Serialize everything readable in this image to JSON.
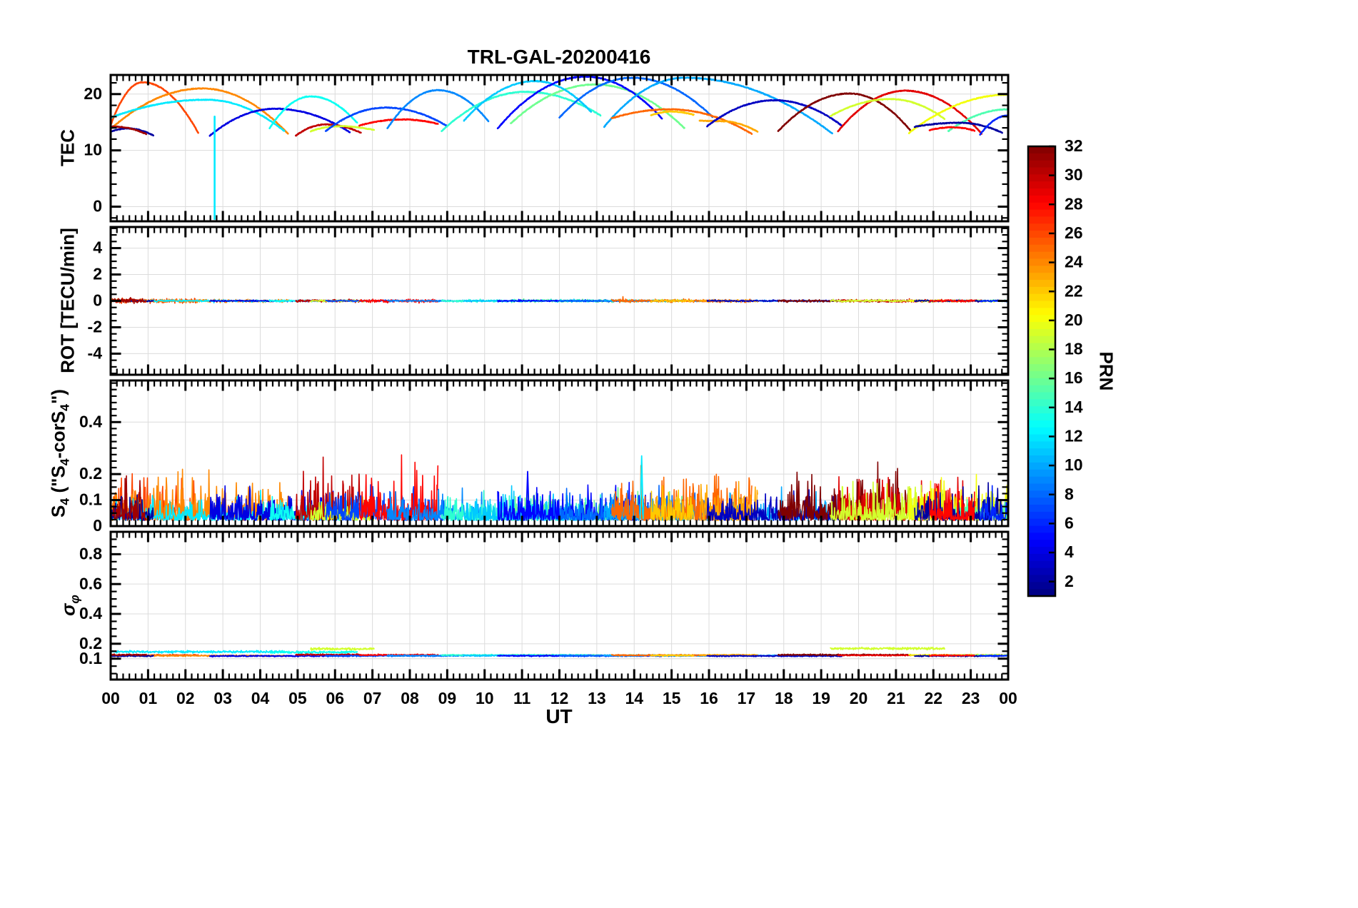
{
  "title": "TRL-GAL-20200416",
  "xlabel": "UT",
  "colorbar": {
    "label": "PRN",
    "range": [
      1,
      32
    ],
    "tick_values": [
      2,
      4,
      6,
      8,
      10,
      12,
      14,
      16,
      18,
      20,
      22,
      24,
      26,
      28,
      30,
      32
    ],
    "colormap": "jet"
  },
  "chart_data": {
    "type": "line",
    "x_unit": "hours UT",
    "x_range": [
      0,
      24
    ],
    "x_tick_labels": [
      "00",
      "01",
      "02",
      "03",
      "04",
      "05",
      "06",
      "07",
      "08",
      "09",
      "10",
      "11",
      "12",
      "13",
      "14",
      "15",
      "16",
      "17",
      "18",
      "19",
      "20",
      "21",
      "22",
      "23",
      "00"
    ],
    "panels": [
      {
        "id": "tec",
        "ylabel_html": "TEC",
        "ylim": [
          -2.6,
          23.4
        ],
        "yticks": [
          0,
          10,
          20
        ],
        "minor_step": 2,
        "grid": true
      },
      {
        "id": "rot",
        "ylabel_html": "ROT [TECU/min]",
        "ylim": [
          -5.6,
          5.6
        ],
        "yticks": [
          -4,
          -2,
          0,
          2,
          4
        ],
        "minor_step": 0.5,
        "grid": true
      },
      {
        "id": "s4",
        "ylabel_html": "S<sub>4</sub> (\"S<sub>4</sub>-corS<sub>4</sub>\")",
        "ylim": [
          0,
          0.56
        ],
        "yticks": [
          0,
          0.1,
          0.2,
          0.4
        ],
        "minor_step": 0.025,
        "grid": true
      },
      {
        "id": "sigma_phi",
        "ylabel_html": "&sigma;<sub>&phi;</sub>",
        "ylim": [
          -0.04,
          0.95
        ],
        "yticks": [
          0.1,
          0.2,
          0.4,
          0.6,
          0.8
        ],
        "minor_step": 0.05,
        "grid": true
      }
    ],
    "satellite_arcs": [
      {
        "prn": 26,
        "t": [
          0,
          0.85,
          2.35
        ],
        "tec": [
          14.5,
          22.1,
          13.0
        ],
        "rot_amp": 0.14,
        "s4_amp": 0.1,
        "sigma": 0.124
      },
      {
        "prn": 24,
        "t": [
          0,
          2.45,
          4.75
        ],
        "tec": [
          13.8,
          21.0,
          12.9
        ],
        "rot_amp": 0.1,
        "s4_amp": 0.09,
        "sigma": 0.12
      },
      {
        "prn": 12,
        "t": [
          0,
          2.55,
          4.65
        ],
        "tec": [
          15.8,
          19.0,
          13.4
        ],
        "rot_amp": 0.06,
        "s4_amp": 0.05,
        "sigma": 0.146
      },
      {
        "prn": 2,
        "t": [
          0,
          0.45,
          1.15
        ],
        "tec": [
          13.3,
          13.9,
          12.6
        ],
        "rot_amp": 0.05,
        "s4_amp": 0.06,
        "sigma": 0.118
      },
      {
        "prn": 31,
        "t": [
          0.05,
          0.1,
          0.95
        ],
        "tec": [
          14.3,
          14.2,
          12.9
        ],
        "rot_amp": 0.16,
        "s4_amp": 0.1,
        "sigma": 0.126
      },
      {
        "prn": 4,
        "t": [
          2.65,
          4.4,
          6.4
        ],
        "tec": [
          12.6,
          17.4,
          13.2
        ],
        "rot_amp": 0.05,
        "s4_amp": 0.07,
        "sigma": 0.118
      },
      {
        "prn": 13,
        "t": [
          4.25,
          5.35,
          6.6
        ],
        "tec": [
          13.9,
          19.6,
          14.8
        ],
        "rot_amp": 0.06,
        "s4_amp": 0.05,
        "sigma": 0.143
      },
      {
        "prn": 30,
        "t": [
          4.95,
          5.75,
          6.7
        ],
        "tec": [
          12.6,
          14.6,
          13.1
        ],
        "rot_amp": 0.09,
        "s4_amp": 0.12,
        "sigma": 0.127
      },
      {
        "prn": 19,
        "t": [
          5.35,
          6.1,
          7.05
        ],
        "tec": [
          13.4,
          14.3,
          13.6
        ],
        "rot_amp": 0.06,
        "s4_amp": 0.06,
        "sigma": 0.165
      },
      {
        "prn": 7,
        "t": [
          5.75,
          7.35,
          9.0
        ],
        "tec": [
          13.4,
          17.6,
          14.3
        ],
        "rot_amp": 0.05,
        "s4_amp": 0.07,
        "sigma": 0.119
      },
      {
        "prn": 28,
        "t": [
          6.65,
          7.8,
          8.75
        ],
        "tec": [
          14.4,
          15.5,
          14.7
        ],
        "rot_amp": 0.1,
        "s4_amp": 0.11,
        "sigma": 0.125
      },
      {
        "prn": 9,
        "t": [
          7.4,
          8.75,
          10.1
        ],
        "tec": [
          13.9,
          20.7,
          15.2
        ],
        "rot_amp": 0.05,
        "s4_amp": 0.06,
        "sigma": 0.12
      },
      {
        "prn": 14,
        "t": [
          8.85,
          11.1,
          13.1
        ],
        "tec": [
          13.4,
          20.4,
          16.2
        ],
        "rot_amp": 0.08,
        "s4_amp": 0.06,
        "sigma": 0.124
      },
      {
        "prn": 16,
        "t": [
          10.7,
          12.95,
          15.35
        ],
        "tec": [
          14.8,
          21.7,
          13.9
        ],
        "rot_amp": 0.08,
        "s4_amp": 0.06,
        "sigma": 0.122
      },
      {
        "prn": 11,
        "t": [
          9.45,
          11.35,
          12.85
        ],
        "tec": [
          15.3,
          22.3,
          16.8
        ],
        "rot_amp": 0.05,
        "s4_amp": 0.06,
        "sigma": 0.121
      },
      {
        "prn": 5,
        "t": [
          10.35,
          12.7,
          14.75
        ],
        "tec": [
          13.9,
          23.1,
          15.6
        ],
        "rot_amp": 0.05,
        "s4_amp": 0.08,
        "sigma": 0.119
      },
      {
        "prn": 8,
        "t": [
          12.0,
          13.95,
          16.1
        ],
        "tec": [
          15.8,
          22.9,
          15.9
        ],
        "rot_amp": 0.05,
        "s4_amp": 0.07,
        "sigma": 0.12
      },
      {
        "prn": 10,
        "t": [
          13.2,
          15.35,
          19.3
        ],
        "tec": [
          14.2,
          22.9,
          13.0
        ],
        "rot_amp": 0.05,
        "s4_amp": 0.06,
        "sigma": 0.121
      },
      {
        "prn": 25,
        "t": [
          13.4,
          14.95,
          17.15
        ],
        "tec": [
          15.7,
          17.3,
          12.9
        ],
        "rot_amp": 0.1,
        "s4_amp": 0.1,
        "sigma": 0.123
      },
      {
        "prn": 22,
        "t": [
          14.45,
          15.0,
          15.6
        ],
        "tec": [
          16.2,
          16.9,
          16.3
        ],
        "rot_amp": 0.08,
        "s4_amp": 0.08,
        "sigma": 0.122
      },
      {
        "prn": 23,
        "t": [
          15.75,
          16.3,
          17.3
        ],
        "tec": [
          15.3,
          15.2,
          13.3
        ],
        "rot_amp": 0.08,
        "s4_amp": 0.09,
        "sigma": 0.124
      },
      {
        "prn": 3,
        "t": [
          15.95,
          17.75,
          19.55
        ],
        "tec": [
          14.3,
          18.9,
          14.4
        ],
        "rot_amp": 0.05,
        "s4_amp": 0.06,
        "sigma": 0.118
      },
      {
        "prn": 32,
        "t": [
          17.85,
          19.75,
          21.4
        ],
        "tec": [
          13.4,
          20.1,
          13.4
        ],
        "rot_amp": 0.08,
        "s4_amp": 0.1,
        "sigma": 0.126
      },
      {
        "prn": 29,
        "t": [
          19.45,
          21.25,
          23.3
        ],
        "tec": [
          13.4,
          20.6,
          12.9
        ],
        "rot_amp": 0.08,
        "s4_amp": 0.09,
        "sigma": 0.123
      },
      {
        "prn": 19,
        "t": [
          19.25,
          20.85,
          22.3
        ],
        "tec": [
          16.1,
          19.1,
          15.6
        ],
        "rot_amp": 0.07,
        "s4_amp": 0.08,
        "sigma": 0.168
      },
      {
        "prn": 20,
        "t": [
          21.35,
          24,
          24
        ],
        "tec": [
          13.1,
          19.9,
          19.9
        ],
        "rot_amp": 0.07,
        "s4_amp": 0.09,
        "sigma": 0.124
      },
      {
        "prn": 15,
        "t": [
          22.4,
          24,
          24
        ],
        "tec": [
          13.4,
          17.3,
          17.3
        ],
        "rot_amp": 0.06,
        "s4_amp": 0.05,
        "sigma": 0.121
      },
      {
        "prn": 2,
        "t": [
          21.5,
          22.7,
          23.85
        ],
        "tec": [
          14.2,
          14.9,
          13.1
        ],
        "rot_amp": 0.05,
        "s4_amp": 0.07,
        "sigma": 0.118
      },
      {
        "prn": 6,
        "t": [
          23.25,
          24,
          24
        ],
        "tec": [
          12.8,
          16.2,
          16.2
        ],
        "rot_amp": 0.05,
        "s4_amp": 0.06,
        "sigma": 0.119
      },
      {
        "prn": 28,
        "t": [
          21.9,
          22.5,
          23.1
        ],
        "tec": [
          13.6,
          14.1,
          13.5
        ],
        "rot_amp": 0.07,
        "s4_amp": 0.08,
        "sigma": 0.122
      }
    ],
    "tec_dropout": {
      "prn": 12,
      "t": 2.78,
      "v_top": 16.0,
      "v_bottom": -2.2
    },
    "s4_spikes": [
      {
        "prn": 5,
        "t": 11.15,
        "v": 0.21
      },
      {
        "prn": 12,
        "t": 14.2,
        "v": 0.27
      }
    ]
  }
}
